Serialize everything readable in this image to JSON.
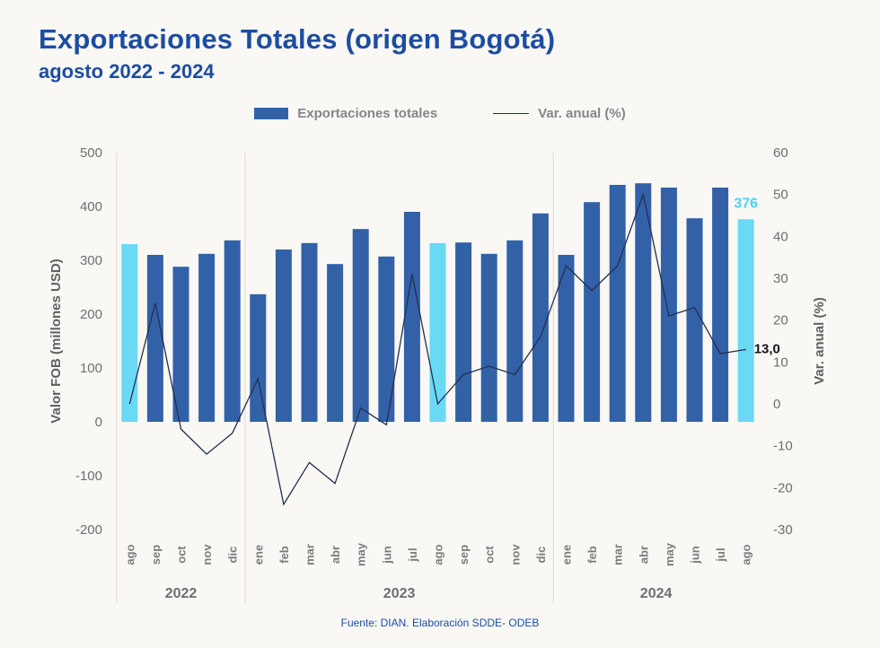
{
  "header": {
    "title": "Exportaciones Totales (origen Bogotá)",
    "subtitle": "agosto 2022 - 2024"
  },
  "legend": {
    "bar_label": "Exportaciones totales",
    "line_label": "Var. anual (%)"
  },
  "footer": {
    "source": "Fuente: DIAN. Elaboración SDDE- ODEB"
  },
  "colors": {
    "background": "#faf8f4",
    "title_blue": "#1c4da1",
    "bar_blue": "#3261a8",
    "highlight_cyan": "#69d9f4",
    "highlight_cyan_text": "#4fd0ef",
    "line_navy": "#22304f",
    "axis_text_gray": "#6e6e73",
    "last_line_label_color": "#15151e"
  },
  "chart_data": {
    "type": "combo-bar-line",
    "title": "Exportaciones Totales (origen Bogotá)",
    "subtitle": "agosto 2022 - 2024",
    "grid": false,
    "legend_position": "top",
    "categories": [
      "ago",
      "sep",
      "oct",
      "nov",
      "dic",
      "ene",
      "feb",
      "mar",
      "abr",
      "may",
      "jun",
      "jul",
      "ago",
      "sep",
      "oct",
      "nov",
      "dic",
      "ene",
      "feb",
      "mar",
      "abr",
      "may",
      "jun",
      "jul",
      "ago"
    ],
    "years": [
      {
        "label": "2022",
        "months": 5
      },
      {
        "label": "2023",
        "months": 12
      },
      {
        "label": "2024",
        "months": 8
      }
    ],
    "left_axis": {
      "label": "Valor FOB (millones USD)",
      "min": -200,
      "max": 500,
      "ticks": [
        500,
        400,
        300,
        200,
        100,
        0,
        -100,
        -200
      ]
    },
    "right_axis": {
      "label": "Var. anual (%)",
      "min": -30,
      "max": 60,
      "ticks": [
        60,
        50,
        40,
        30,
        20,
        10,
        0,
        -10,
        -20,
        -30
      ]
    },
    "series": [
      {
        "name": "Exportaciones totales",
        "type": "bar",
        "axis": "left",
        "unit": "millones USD",
        "values": [
          330,
          310,
          288,
          312,
          337,
          237,
          320,
          332,
          293,
          358,
          307,
          390,
          332,
          333,
          312,
          337,
          387,
          310,
          408,
          440,
          443,
          435,
          378,
          435,
          376
        ],
        "highlight_indices": [
          0,
          12,
          24
        ]
      },
      {
        "name": "Var. anual (%)",
        "type": "line",
        "axis": "right",
        "unit": "%",
        "values": [
          0,
          24,
          -6,
          -12,
          -7,
          6,
          -24,
          -14,
          -19,
          -1,
          -5,
          31,
          0,
          7,
          9,
          7,
          16,
          33,
          27,
          33,
          50,
          21,
          23,
          12,
          13
        ]
      }
    ],
    "annotations": {
      "last_bar_value": "376",
      "last_line_value": "13,0"
    }
  }
}
